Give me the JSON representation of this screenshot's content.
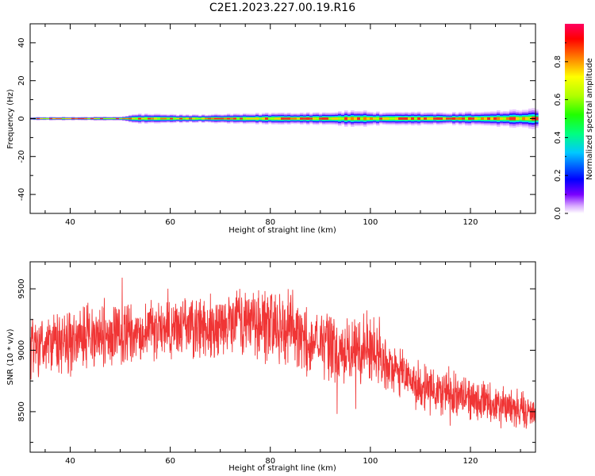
{
  "title": "C2E1.2023.227.00.19.R16",
  "chart_data": [
    {
      "type": "heatmap",
      "xlabel": "Height of straight line (km)",
      "ylabel": "Frequency (Hz)",
      "xlim": [
        32,
        133
      ],
      "ylim": [
        -50,
        50
      ],
      "xticks": [
        40,
        60,
        80,
        100,
        120
      ],
      "yticks": [
        40,
        20,
        0,
        -20,
        -40
      ],
      "band_halfwidth_hz": [
        [
          32,
          0.8
        ],
        [
          50,
          1.0
        ],
        [
          53,
          2.5
        ],
        [
          60,
          2.2
        ],
        [
          65,
          2.0
        ],
        [
          75,
          2.5
        ],
        [
          80,
          3.0
        ],
        [
          90,
          3.2
        ],
        [
          95,
          3.8
        ],
        [
          98,
          4.2
        ],
        [
          102,
          3.0
        ],
        [
          110,
          3.3
        ],
        [
          115,
          3.0
        ],
        [
          120,
          3.4
        ],
        [
          125,
          4.0
        ],
        [
          133,
          5.0
        ]
      ],
      "colorbar": {
        "label": "Normalized spectral amplitude",
        "range": [
          0,
          1
        ],
        "ticks": [
          0.0,
          0.2,
          0.4,
          0.6,
          0.8
        ]
      }
    },
    {
      "type": "line",
      "xlabel": "Height of straight line (km)",
      "ylabel": "SNR (10 * v/v)",
      "xlim": [
        32,
        133
      ],
      "ylim": [
        8170,
        9720
      ],
      "xticks": [
        40,
        60,
        80,
        100,
        120
      ],
      "yticks": [
        8500,
        9000,
        9500
      ],
      "color": "#f03535",
      "series": [
        {
          "x": [
            32,
            40,
            50,
            60,
            70,
            76,
            80,
            84,
            88,
            92,
            96,
            100,
            104,
            108,
            112,
            116,
            120,
            125,
            130,
            133
          ],
          "mean": [
            9000,
            9080,
            9130,
            9180,
            9200,
            9260,
            9180,
            9200,
            9050,
            9020,
            9000,
            9020,
            8850,
            8760,
            8670,
            8640,
            8600,
            8560,
            8520,
            8500
          ],
          "noise": [
            180,
            190,
            180,
            170,
            180,
            190,
            220,
            220,
            200,
            200,
            200,
            190,
            170,
            150,
            140,
            130,
            120,
            120,
            120,
            120
          ]
        }
      ]
    }
  ]
}
